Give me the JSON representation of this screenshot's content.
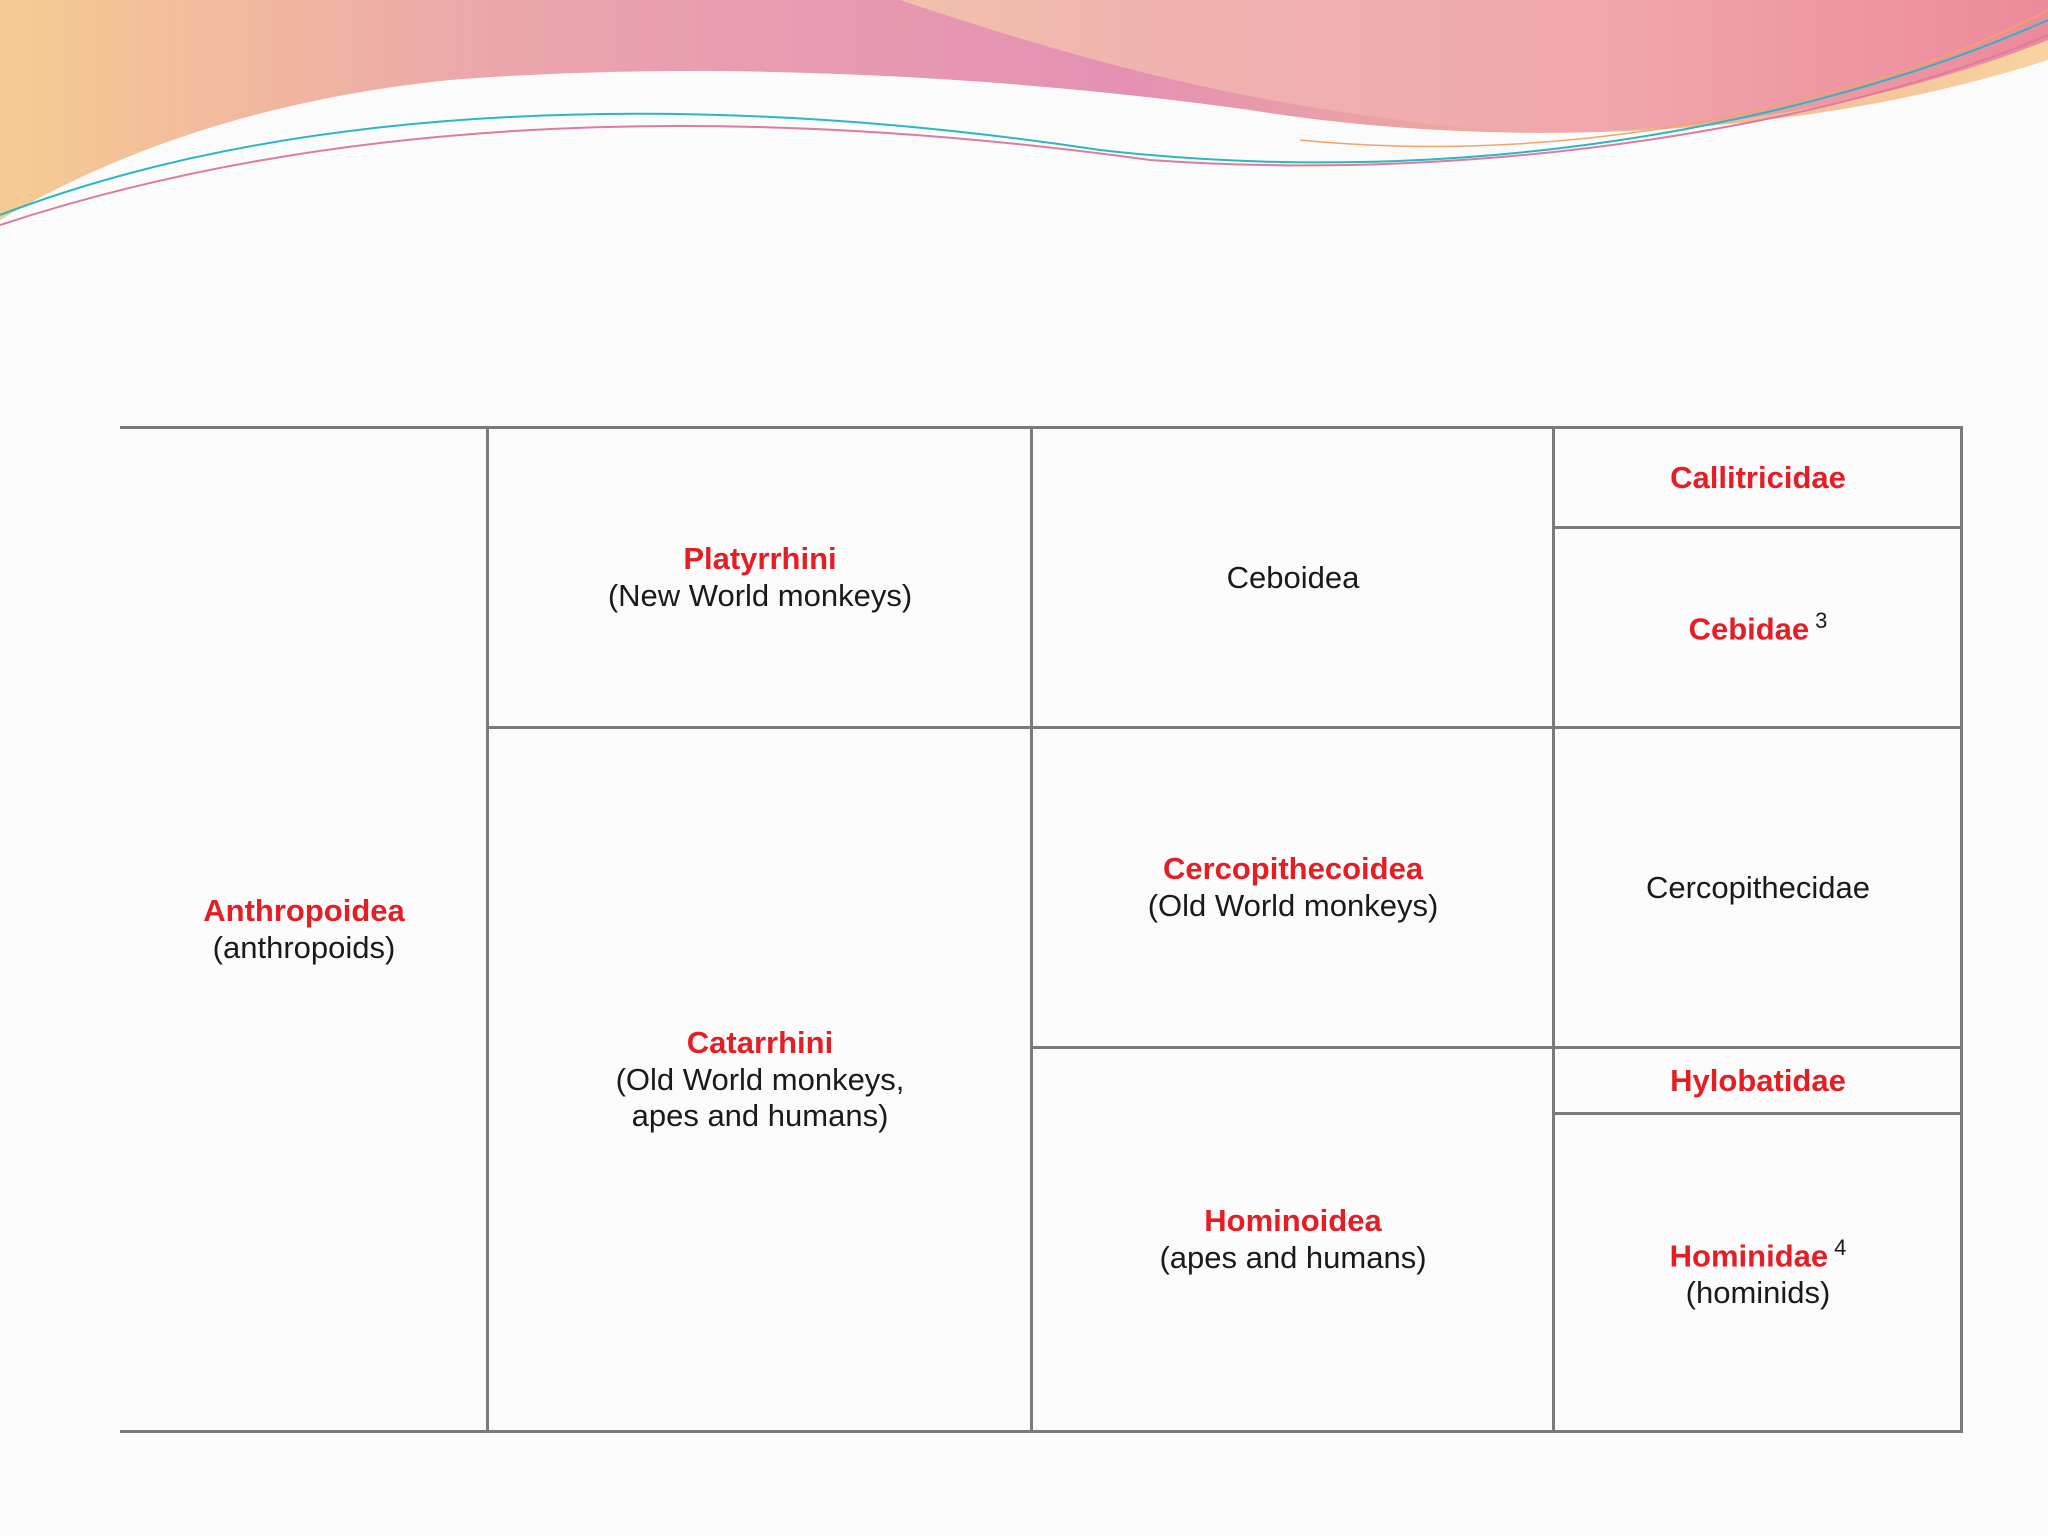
{
  "colors": {
    "taxon_name": "#e31e24",
    "plain_text": "#1a1a1a",
    "grid_line": "#7a7a7a",
    "banner_pink": "#e58cb0",
    "banner_peach": "#f2b88a"
  },
  "table": {
    "anthropoidea": {
      "name": "Anthropoidea",
      "common": "(anthropoids)"
    },
    "platyrrhini": {
      "name": "Platyrrhini",
      "common": "(New World monkeys)"
    },
    "catarrhini": {
      "name": "Catarrhini",
      "common": "(Old World monkeys,\napes and humans)"
    },
    "ceboidea": {
      "name": "Ceboidea"
    },
    "cercopithecoidea": {
      "name": "Cercopithecoidea",
      "common": "(Old World monkeys)"
    },
    "hominoidea": {
      "name": "Hominoidea",
      "common": "(apes and humans)"
    },
    "callitricidae": {
      "name": "Callitricidae"
    },
    "cebidae": {
      "name": "Cebidae",
      "footnote": "3"
    },
    "cercopithecidae": {
      "name": "Cercopithecidae"
    },
    "hylobatidae": {
      "name": "Hylobatidae"
    },
    "hominidae": {
      "name": "Hominidae",
      "footnote": "4",
      "common": "(hominids)"
    }
  }
}
